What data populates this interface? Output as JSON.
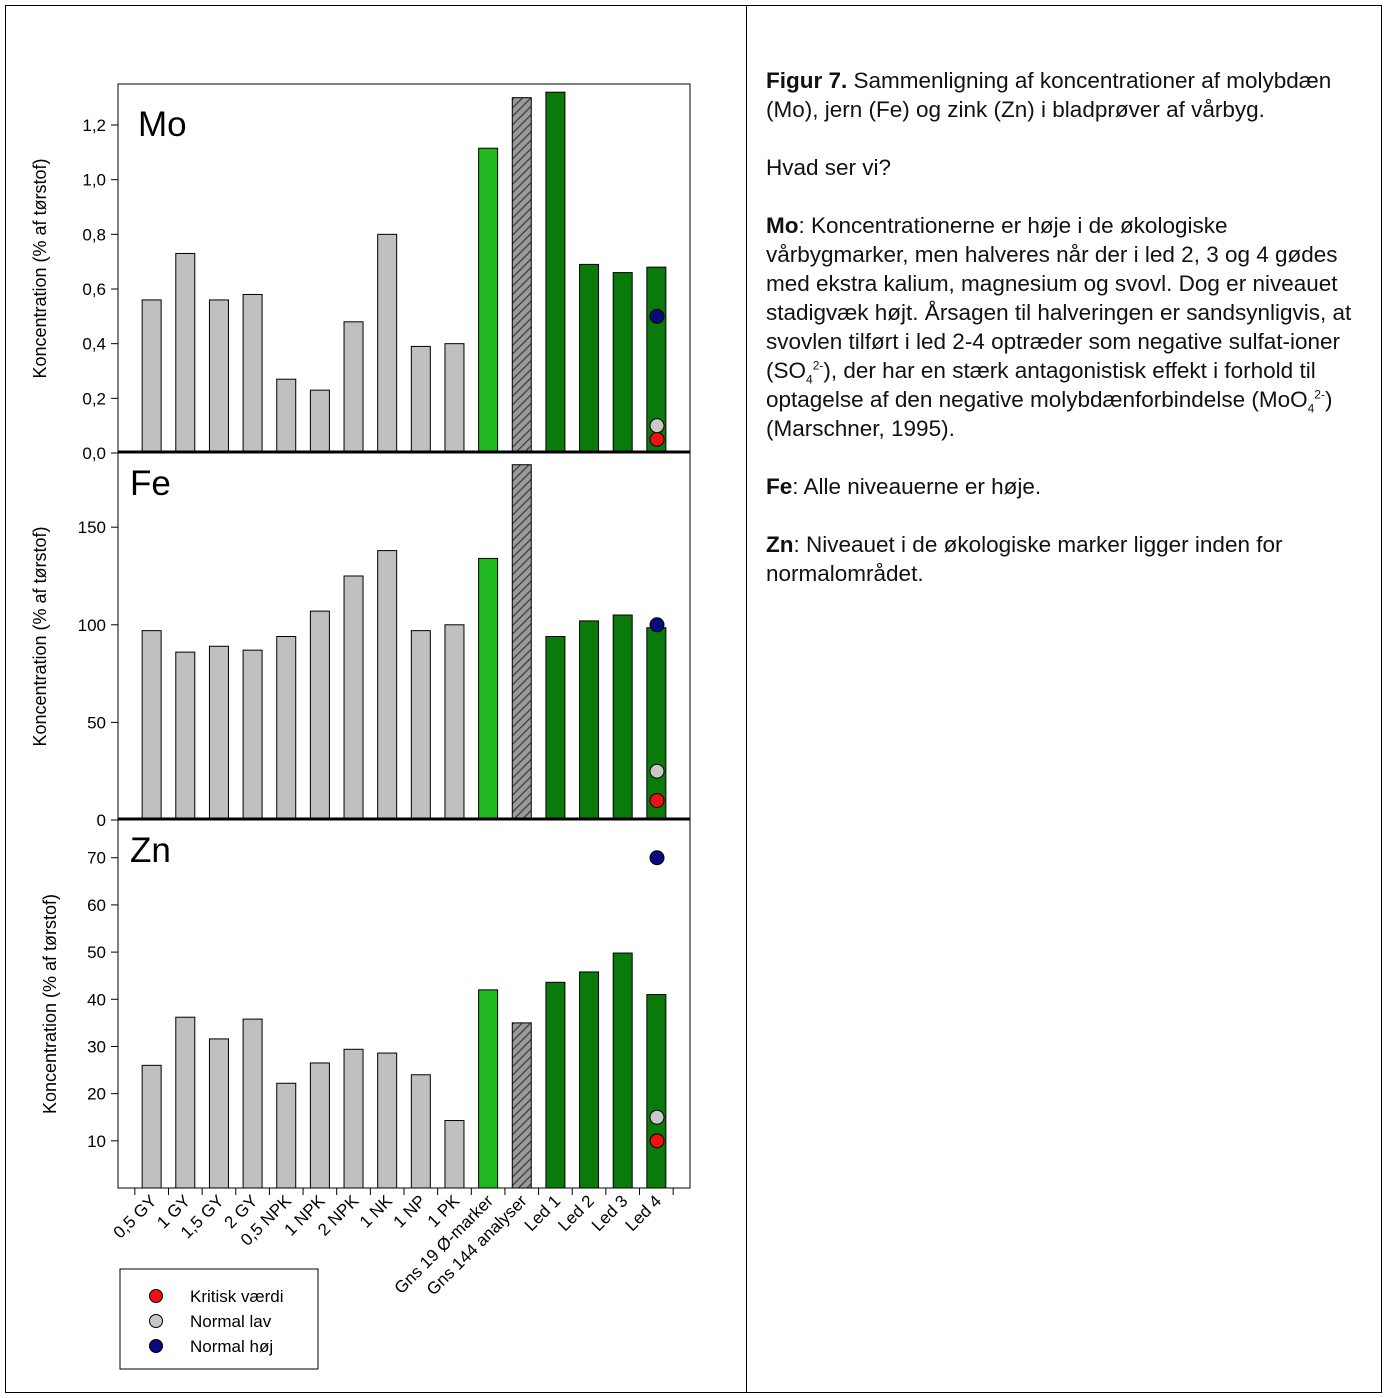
{
  "chart_data": {
    "type": "bar",
    "categories": [
      "0,5 GY",
      "1 GY",
      "1,5 GY",
      "2 GY",
      "0,5 NPK",
      "1 NPK",
      "2 NPK",
      "1 NK",
      "1 NP",
      "1 PK",
      "Gns 19 Ø-marker",
      "Gns 144 analyser",
      "Led 1",
      "Led 2",
      "Led 3",
      "Led 4"
    ],
    "bar_colors": [
      "#c0c0c0",
      "#c0c0c0",
      "#c0c0c0",
      "#c0c0c0",
      "#c0c0c0",
      "#c0c0c0",
      "#c0c0c0",
      "#c0c0c0",
      "#c0c0c0",
      "#c0c0c0",
      "#1fb81f",
      "hatched-grey",
      "#0a7a0a",
      "#0a7a0a",
      "#0a7a0a",
      "#0a7a0a"
    ],
    "panels": [
      {
        "title": "Mo",
        "ylabel": "Koncentration (% af tørstof)",
        "ylim": [
          0,
          1.35
        ],
        "yticks": [
          "0,0",
          "0,2",
          "0,4",
          "0,6",
          "0,8",
          "1,0",
          "1,2"
        ],
        "ytick_values": [
          0,
          0.2,
          0.4,
          0.6,
          0.8,
          1.0,
          1.2
        ],
        "values": [
          0.56,
          0.73,
          0.56,
          0.58,
          0.27,
          0.23,
          0.48,
          0.8,
          0.39,
          0.4,
          1.115,
          1.3,
          1.32,
          0.69,
          0.66,
          0.68
        ],
        "reference": {
          "kritisk": 0.05,
          "normal_lav": 0.1,
          "normal_hoj": 0.5
        }
      },
      {
        "title": "Fe",
        "ylabel": "Koncentration (% af tørstof)",
        "ylim": [
          0,
          188
        ],
        "yticks": [
          "0",
          "50",
          "100",
          "150"
        ],
        "ytick_values": [
          0,
          50,
          100,
          150
        ],
        "values": [
          97,
          86,
          89,
          87,
          94,
          107,
          125,
          138,
          97,
          100,
          134,
          182,
          94,
          102,
          105,
          98.5
        ],
        "reference": {
          "kritisk": 10,
          "normal_lav": 25,
          "normal_hoj": 100
        }
      },
      {
        "title": "Zn",
        "ylabel": "Koncentration (% af tørstof)",
        "ylim": [
          0,
          78
        ],
        "yticks": [
          "10",
          "20",
          "30",
          "40",
          "50",
          "60",
          "70"
        ],
        "ytick_values": [
          10,
          20,
          30,
          40,
          50,
          60,
          70
        ],
        "values": [
          26,
          36.2,
          31.6,
          35.8,
          22.2,
          26.5,
          29.4,
          28.6,
          24,
          14.3,
          42,
          35,
          43.6,
          45.8,
          49.8,
          41
        ],
        "reference": {
          "kritisk": 10,
          "normal_lav": 15,
          "normal_hoj": 70
        }
      }
    ],
    "legend": {
      "placement": "bottom-left",
      "entries": [
        {
          "label": "Kritisk værdi",
          "color": "#ee1111"
        },
        {
          "label": "Normal lav",
          "color": "#c8c8c8"
        },
        {
          "label": "Normal høj",
          "color": "#0a0a80"
        }
      ]
    }
  },
  "text": {
    "caption_label": "Figur 7.",
    "caption_text": " Sammenligning af koncentrationer af molybdæn (Mo), jern (Fe) og zink (Zn) i bladprøver af vårbyg.",
    "question": "Hvad ser vi?",
    "mo_label": "Mo",
    "mo_text_1": ": Koncentrationerne er høje i de økologiske vårbygmarker, men halveres når der i led 2, 3 og 4 gødes med ekstra kalium, magnesium og svovl. Dog er niveauet stadigvæk højt. Årsagen til halveringen er sandsynligvis, at svovlen tilført i led 2-4 optræder som negative sulfat-ioner (SO",
    "mo_sub_1": "4",
    "mo_sup_1": "2-",
    "mo_text_2": "), der har en stærk antagonistisk effekt i forhold til optagelse af den negative molybdænforbindelse (MoO",
    "mo_sub_2": "4",
    "mo_sup_2": "2-",
    "mo_text_3": ") (Marschner, 1995).",
    "fe_label": "Fe",
    "fe_text": ": Alle niveauerne er høje.",
    "zn_label": "Zn",
    "zn_text": ": Niveauet i de økologiske marker ligger inden for normalområdet."
  }
}
